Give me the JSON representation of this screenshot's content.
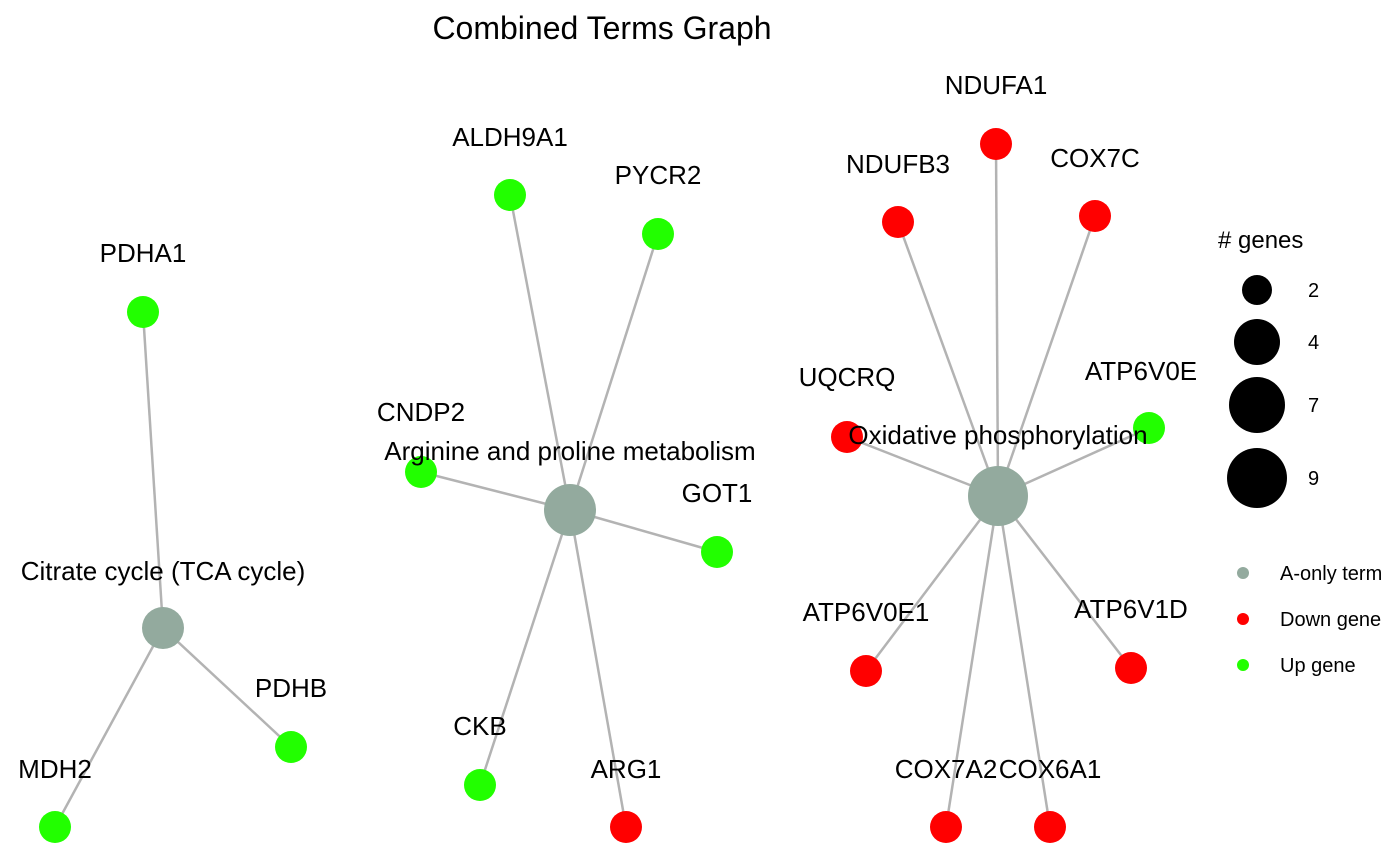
{
  "title": "Combined Terms Graph",
  "colors": {
    "term": "#93aa9e",
    "down": "#ff0000",
    "up": "#22ff00",
    "edge": "#b3b3b3"
  },
  "terms": [
    {
      "id": "t_tca",
      "label": "Citrate cycle (TCA cycle)",
      "type": "term"
    },
    {
      "id": "t_arg",
      "label": "Arginine and proline metabolism",
      "type": "term"
    },
    {
      "id": "t_ox",
      "label": "Oxidative phosphorylation",
      "type": "term"
    }
  ],
  "genes": [
    {
      "id": "g_pdha1",
      "label": "PDHA1",
      "type": "up"
    },
    {
      "id": "g_pdhb",
      "label": "PDHB",
      "type": "up"
    },
    {
      "id": "g_mdh2",
      "label": "MDH2",
      "type": "up"
    },
    {
      "id": "g_aldh9a1",
      "label": "ALDH9A1",
      "type": "up"
    },
    {
      "id": "g_pycr2",
      "label": "PYCR2",
      "type": "up"
    },
    {
      "id": "g_cndp2",
      "label": "CNDP2",
      "type": "up"
    },
    {
      "id": "g_got1",
      "label": "GOT1",
      "type": "up"
    },
    {
      "id": "g_ckb",
      "label": "CKB",
      "type": "up"
    },
    {
      "id": "g_arg1",
      "label": "ARG1",
      "type": "down"
    },
    {
      "id": "g_ndufa1",
      "label": "NDUFA1",
      "type": "down"
    },
    {
      "id": "g_ndufb3",
      "label": "NDUFB3",
      "type": "down"
    },
    {
      "id": "g_cox7c",
      "label": "COX7C",
      "type": "down"
    },
    {
      "id": "g_uqcrq",
      "label": "UQCRQ",
      "type": "down"
    },
    {
      "id": "g_atp6v0e",
      "label": "ATP6V0E",
      "type": "up"
    },
    {
      "id": "g_atp6v0e1",
      "label": "ATP6V0E1",
      "type": "down"
    },
    {
      "id": "g_atp6v1d",
      "label": "ATP6V1D",
      "type": "down"
    },
    {
      "id": "g_cox7a2",
      "label": "COX7A2",
      "type": "down"
    },
    {
      "id": "g_cox6a1",
      "label": "COX6A1",
      "type": "down"
    }
  ],
  "edges": [
    [
      "t_tca",
      "g_pdha1"
    ],
    [
      "t_tca",
      "g_pdhb"
    ],
    [
      "t_tca",
      "g_mdh2"
    ],
    [
      "t_arg",
      "g_aldh9a1"
    ],
    [
      "t_arg",
      "g_pycr2"
    ],
    [
      "t_arg",
      "g_cndp2"
    ],
    [
      "t_arg",
      "g_got1"
    ],
    [
      "t_arg",
      "g_ckb"
    ],
    [
      "t_arg",
      "g_arg1"
    ],
    [
      "t_ox",
      "g_ndufa1"
    ],
    [
      "t_ox",
      "g_ndufb3"
    ],
    [
      "t_ox",
      "g_cox7c"
    ],
    [
      "t_ox",
      "g_uqcrq"
    ],
    [
      "t_ox",
      "g_atp6v0e"
    ],
    [
      "t_ox",
      "g_atp6v0e1"
    ],
    [
      "t_ox",
      "g_atp6v1d"
    ],
    [
      "t_ox",
      "g_cox7a2"
    ],
    [
      "t_ox",
      "g_cox6a1"
    ]
  ],
  "legend": {
    "size_title": "# genes",
    "size_items": [
      "2",
      "4",
      "7",
      "9"
    ],
    "color_items": [
      {
        "label": "A-only term",
        "type": "term"
      },
      {
        "label": "Down gene",
        "type": "down"
      },
      {
        "label": "Up gene",
        "type": "up"
      }
    ]
  }
}
